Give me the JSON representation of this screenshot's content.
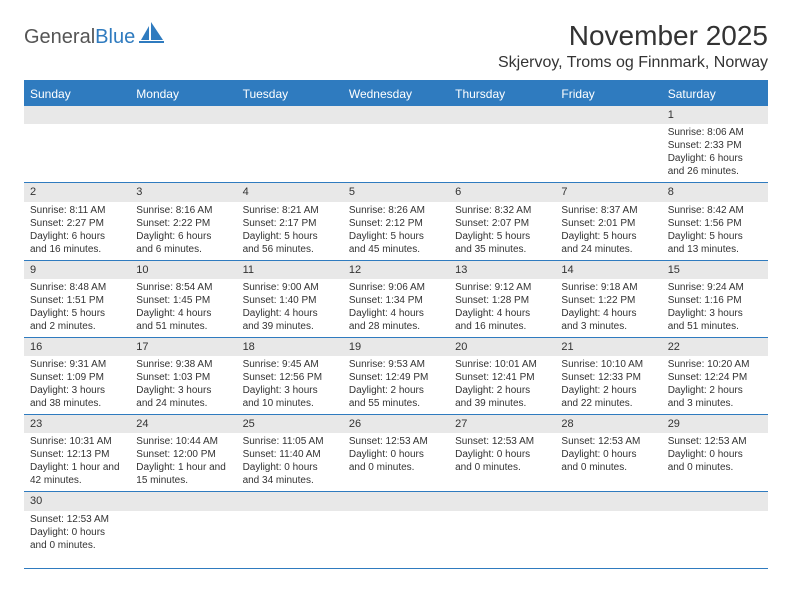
{
  "logo": {
    "text1": "General",
    "text2": "Blue"
  },
  "title": "November 2025",
  "location": "Skjervoy, Troms og Finnmark, Norway",
  "colors": {
    "header_bg": "#2f7bbf",
    "header_text": "#ffffff",
    "daynum_bg": "#e8e8e8",
    "text": "#333333",
    "border": "#2f7bbf"
  },
  "weekdays": [
    "Sunday",
    "Monday",
    "Tuesday",
    "Wednesday",
    "Thursday",
    "Friday",
    "Saturday"
  ],
  "weeks": [
    [
      null,
      null,
      null,
      null,
      null,
      null,
      {
        "n": "1",
        "sr": "Sunrise: 8:06 AM",
        "ss": "Sunset: 2:33 PM",
        "dl": "Daylight: 6 hours and 26 minutes."
      }
    ],
    [
      {
        "n": "2",
        "sr": "Sunrise: 8:11 AM",
        "ss": "Sunset: 2:27 PM",
        "dl": "Daylight: 6 hours and 16 minutes."
      },
      {
        "n": "3",
        "sr": "Sunrise: 8:16 AM",
        "ss": "Sunset: 2:22 PM",
        "dl": "Daylight: 6 hours and 6 minutes."
      },
      {
        "n": "4",
        "sr": "Sunrise: 8:21 AM",
        "ss": "Sunset: 2:17 PM",
        "dl": "Daylight: 5 hours and 56 minutes."
      },
      {
        "n": "5",
        "sr": "Sunrise: 8:26 AM",
        "ss": "Sunset: 2:12 PM",
        "dl": "Daylight: 5 hours and 45 minutes."
      },
      {
        "n": "6",
        "sr": "Sunrise: 8:32 AM",
        "ss": "Sunset: 2:07 PM",
        "dl": "Daylight: 5 hours and 35 minutes."
      },
      {
        "n": "7",
        "sr": "Sunrise: 8:37 AM",
        "ss": "Sunset: 2:01 PM",
        "dl": "Daylight: 5 hours and 24 minutes."
      },
      {
        "n": "8",
        "sr": "Sunrise: 8:42 AM",
        "ss": "Sunset: 1:56 PM",
        "dl": "Daylight: 5 hours and 13 minutes."
      }
    ],
    [
      {
        "n": "9",
        "sr": "Sunrise: 8:48 AM",
        "ss": "Sunset: 1:51 PM",
        "dl": "Daylight: 5 hours and 2 minutes."
      },
      {
        "n": "10",
        "sr": "Sunrise: 8:54 AM",
        "ss": "Sunset: 1:45 PM",
        "dl": "Daylight: 4 hours and 51 minutes."
      },
      {
        "n": "11",
        "sr": "Sunrise: 9:00 AM",
        "ss": "Sunset: 1:40 PM",
        "dl": "Daylight: 4 hours and 39 minutes."
      },
      {
        "n": "12",
        "sr": "Sunrise: 9:06 AM",
        "ss": "Sunset: 1:34 PM",
        "dl": "Daylight: 4 hours and 28 minutes."
      },
      {
        "n": "13",
        "sr": "Sunrise: 9:12 AM",
        "ss": "Sunset: 1:28 PM",
        "dl": "Daylight: 4 hours and 16 minutes."
      },
      {
        "n": "14",
        "sr": "Sunrise: 9:18 AM",
        "ss": "Sunset: 1:22 PM",
        "dl": "Daylight: 4 hours and 3 minutes."
      },
      {
        "n": "15",
        "sr": "Sunrise: 9:24 AM",
        "ss": "Sunset: 1:16 PM",
        "dl": "Daylight: 3 hours and 51 minutes."
      }
    ],
    [
      {
        "n": "16",
        "sr": "Sunrise: 9:31 AM",
        "ss": "Sunset: 1:09 PM",
        "dl": "Daylight: 3 hours and 38 minutes."
      },
      {
        "n": "17",
        "sr": "Sunrise: 9:38 AM",
        "ss": "Sunset: 1:03 PM",
        "dl": "Daylight: 3 hours and 24 minutes."
      },
      {
        "n": "18",
        "sr": "Sunrise: 9:45 AM",
        "ss": "Sunset: 12:56 PM",
        "dl": "Daylight: 3 hours and 10 minutes."
      },
      {
        "n": "19",
        "sr": "Sunrise: 9:53 AM",
        "ss": "Sunset: 12:49 PM",
        "dl": "Daylight: 2 hours and 55 minutes."
      },
      {
        "n": "20",
        "sr": "Sunrise: 10:01 AM",
        "ss": "Sunset: 12:41 PM",
        "dl": "Daylight: 2 hours and 39 minutes."
      },
      {
        "n": "21",
        "sr": "Sunrise: 10:10 AM",
        "ss": "Sunset: 12:33 PM",
        "dl": "Daylight: 2 hours and 22 minutes."
      },
      {
        "n": "22",
        "sr": "Sunrise: 10:20 AM",
        "ss": "Sunset: 12:24 PM",
        "dl": "Daylight: 2 hours and 3 minutes."
      }
    ],
    [
      {
        "n": "23",
        "sr": "Sunrise: 10:31 AM",
        "ss": "Sunset: 12:13 PM",
        "dl": "Daylight: 1 hour and 42 minutes."
      },
      {
        "n": "24",
        "sr": "Sunrise: 10:44 AM",
        "ss": "Sunset: 12:00 PM",
        "dl": "Daylight: 1 hour and 15 minutes."
      },
      {
        "n": "25",
        "sr": "Sunrise: 11:05 AM",
        "ss": "Sunset: 11:40 AM",
        "dl": "Daylight: 0 hours and 34 minutes."
      },
      {
        "n": "26",
        "sr": "",
        "ss": "Sunset: 12:53 AM",
        "dl": "Daylight: 0 hours and 0 minutes."
      },
      {
        "n": "27",
        "sr": "",
        "ss": "Sunset: 12:53 AM",
        "dl": "Daylight: 0 hours and 0 minutes."
      },
      {
        "n": "28",
        "sr": "",
        "ss": "Sunset: 12:53 AM",
        "dl": "Daylight: 0 hours and 0 minutes."
      },
      {
        "n": "29",
        "sr": "",
        "ss": "Sunset: 12:53 AM",
        "dl": "Daylight: 0 hours and 0 minutes."
      }
    ],
    [
      {
        "n": "30",
        "sr": "",
        "ss": "Sunset: 12:53 AM",
        "dl": "Daylight: 0 hours and 0 minutes."
      },
      null,
      null,
      null,
      null,
      null,
      null
    ]
  ]
}
